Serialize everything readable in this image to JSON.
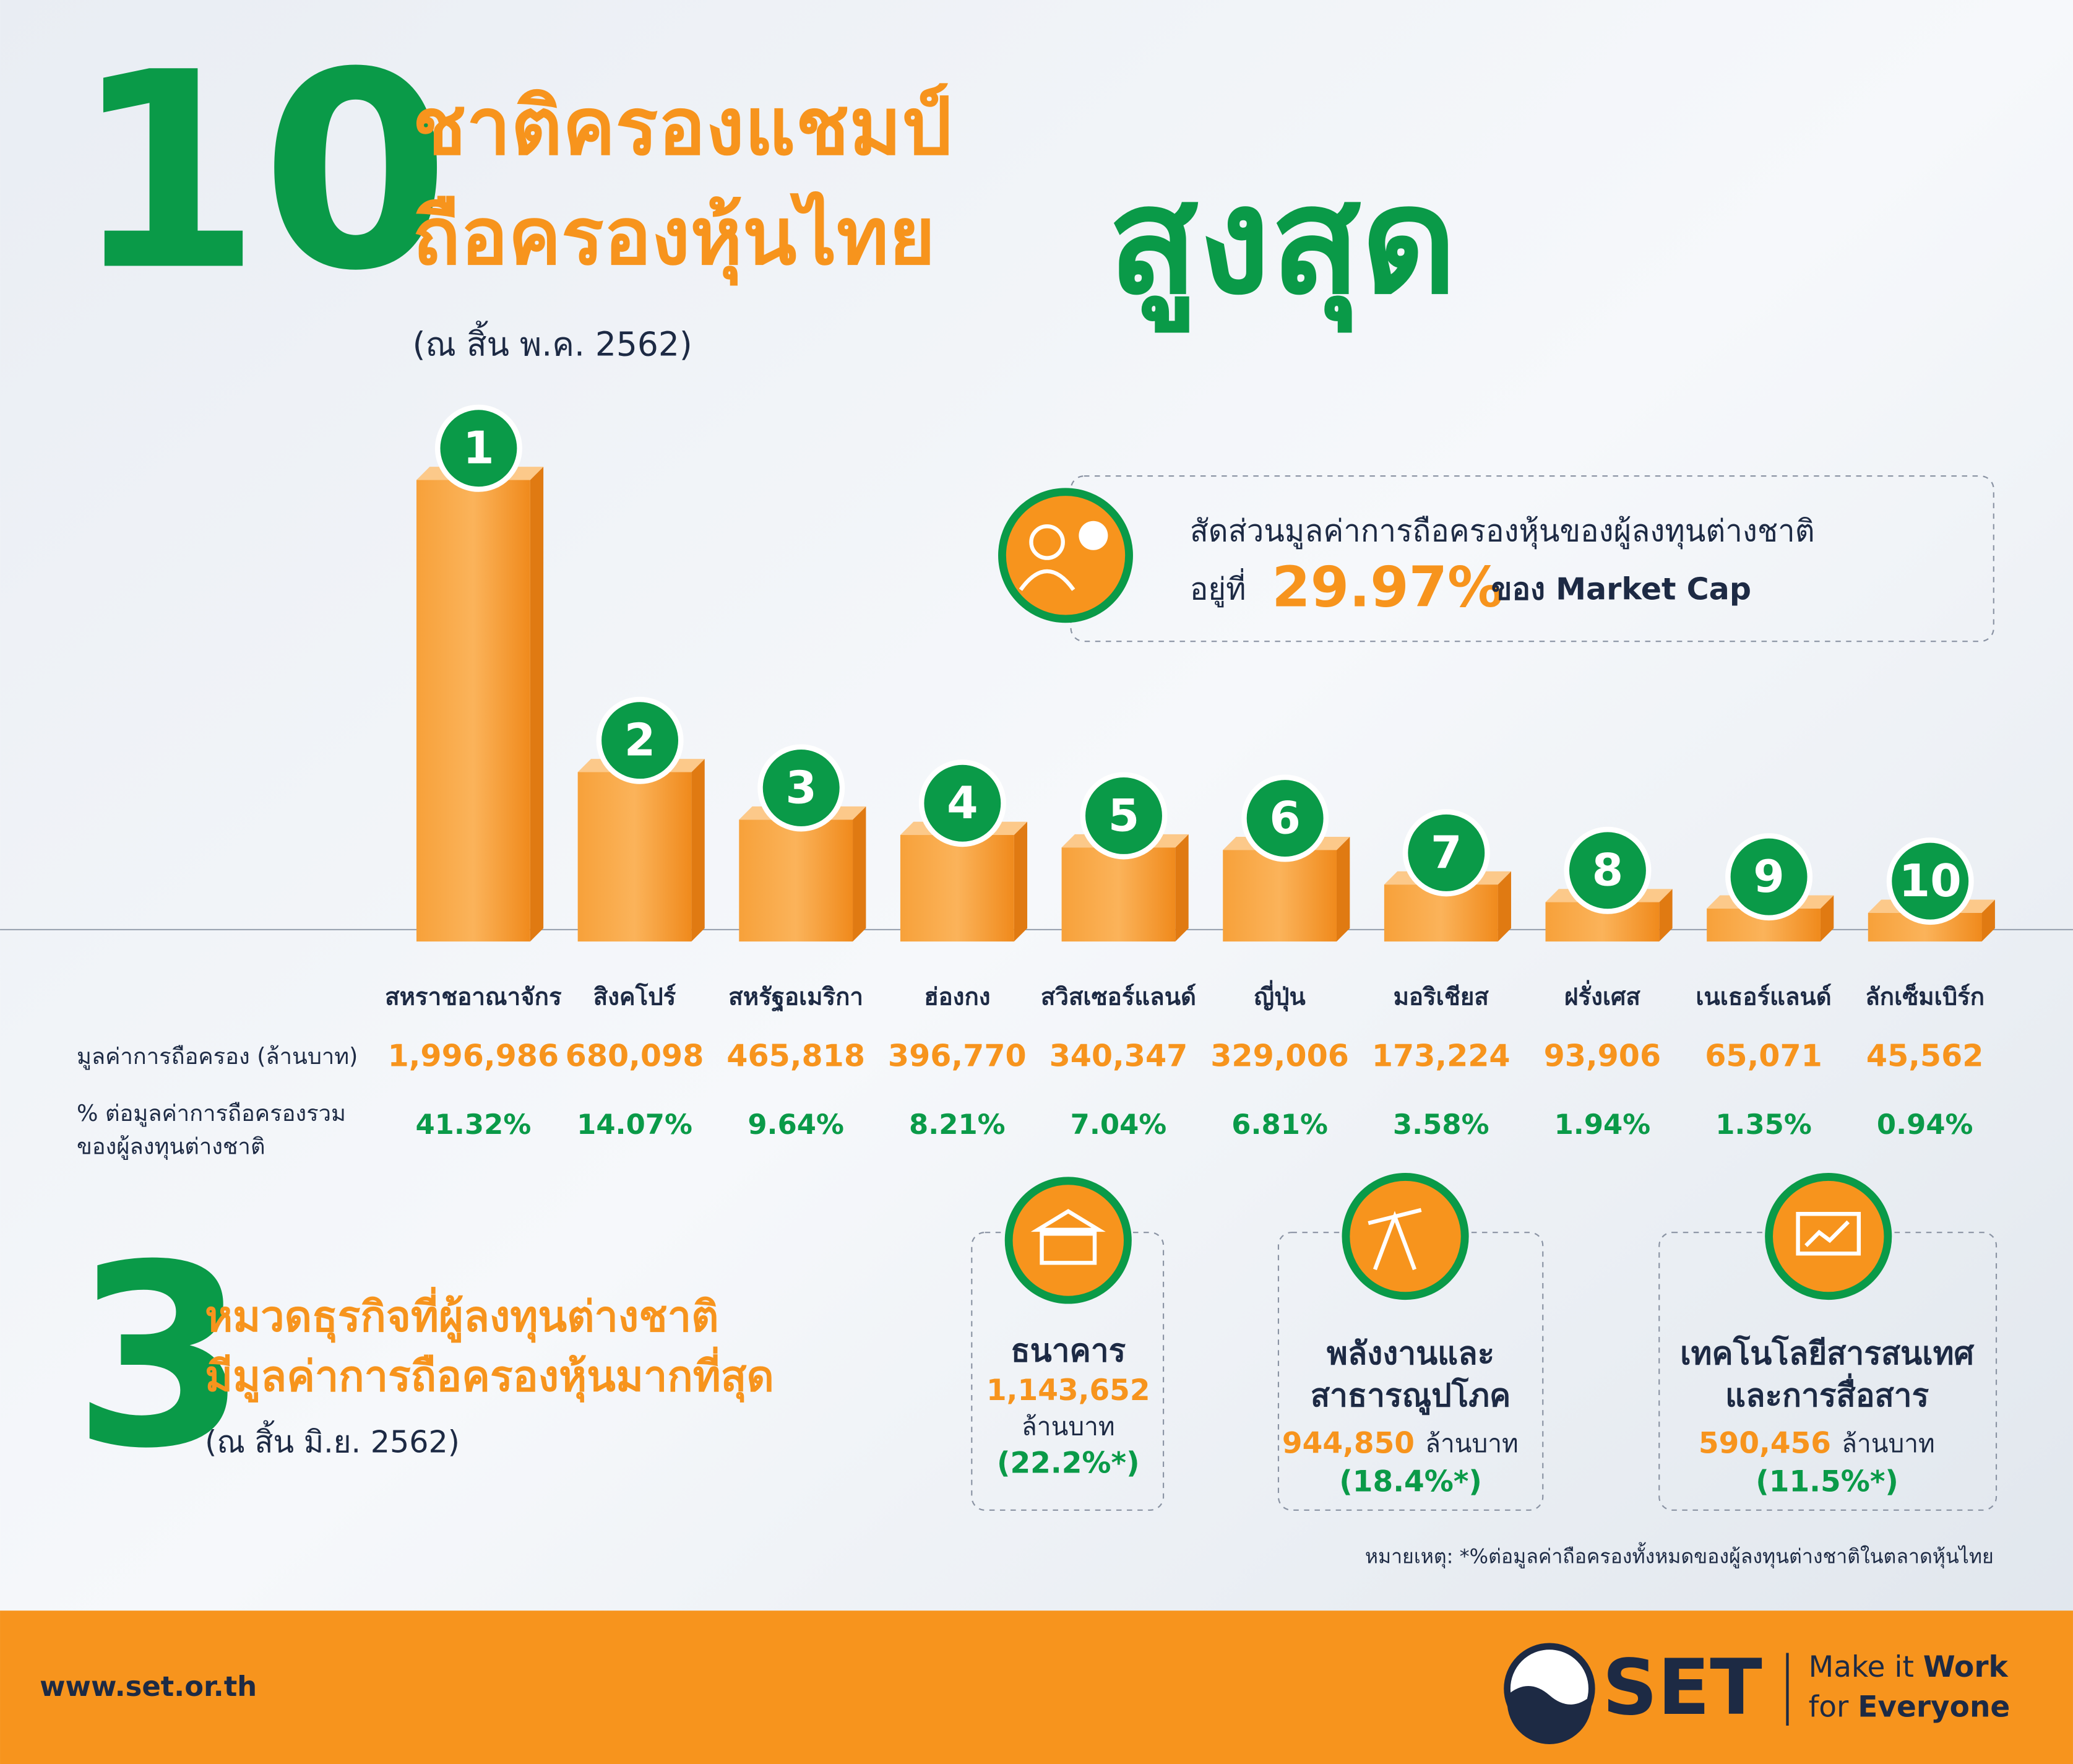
{
  "header": {
    "big_number": "10",
    "title_line1": "ชาติครองแชมป์",
    "title_line2": "ถือครองหุ้นไทย",
    "title_emphasis": "สูงสุด",
    "subtitle": "(ณ สิ้น พ.ค. 2562)"
  },
  "callout": {
    "line1": "สัดส่วนมูลค่าการถือครองหุ้นของผู้ลงทุนต่างชาติ",
    "prefix": "อยู่ที่",
    "value_label": "29.97%",
    "suffix": "ของ Market Cap"
  },
  "chart_data": {
    "type": "bar",
    "categories": [
      "สหราชอาณาจักร",
      "สิงคโปร์",
      "สหรัฐอเมริกา",
      "ฮ่องกง",
      "สวิสเซอร์แลนด์",
      "ญี่ปุ่น",
      "มอริเชียส",
      "ฝรั่งเศส",
      "เนเธอร์แลนด์",
      "ลักเซ็มเบิร์ก"
    ],
    "ranks": [
      1,
      2,
      3,
      4,
      5,
      6,
      7,
      8,
      9,
      10
    ],
    "series": [
      {
        "name": "มูลค่าการถือครอง (ล้านบาท)",
        "color": "#f7941d",
        "values": [
          1996986,
          680098,
          465818,
          396770,
          340347,
          329006,
          173224,
          93906,
          65071,
          45562
        ],
        "value_labels": [
          "1,996,986",
          "680,098",
          "465,818",
          "396,770",
          "340,347",
          "329,006",
          "173,224",
          "93,906",
          "65,071",
          "45,562"
        ]
      },
      {
        "name": "% ต่อมูลค่าการถือครองรวม ของผู้ลงทุนต่างชาติ",
        "color": "#0a9a48",
        "values": [
          41.32,
          14.07,
          9.64,
          8.21,
          7.04,
          6.81,
          3.58,
          1.94,
          1.35,
          0.94
        ],
        "value_labels": [
          "41.32%",
          "14.07%",
          "9.64%",
          "8.21%",
          "7.04%",
          "6.81%",
          "3.58%",
          "1.94%",
          "1.35%",
          "0.94%"
        ]
      }
    ]
  },
  "sectors_section": {
    "big_number": "3",
    "title_line1": "หมวดธุรกิจที่ผู้ลงทุนต่างชาติ",
    "title_line2": "มีมูลค่าการถือครองหุ้นมากที่สุด",
    "subtitle": "(ณ สิ้น มิ.ย. 2562)",
    "sectors": [
      {
        "name_lines": [
          "ธนาคาร"
        ],
        "amount": "1,143,652",
        "unit": "ล้านบาท",
        "share": "(22.2%*)"
      },
      {
        "name_lines": [
          "พลังงานและ",
          "สาธารณูปโภค"
        ],
        "amount": "944,850",
        "unit": "ล้านบาท",
        "share": "(18.4%*)"
      },
      {
        "name_lines": [
          "เทคโนโลยีสารสนเทศ",
          "และการสื่อสาร"
        ],
        "amount": "590,456",
        "unit": "ล้านบาท",
        "share": "(11.5%*)"
      }
    ],
    "note": "หมายเหตุ: *%ต่อมูลค่าถือครองทั้งหมดของผู้ลงทุนต่างชาติในตลาดหุ้นไทย"
  },
  "footer": {
    "url": "www.set.or.th",
    "logo": "SET",
    "slogan_line1_a": "Make it",
    "slogan_line1_b": "Work",
    "slogan_line2_a": "for",
    "slogan_line2_b": "Everyone"
  }
}
